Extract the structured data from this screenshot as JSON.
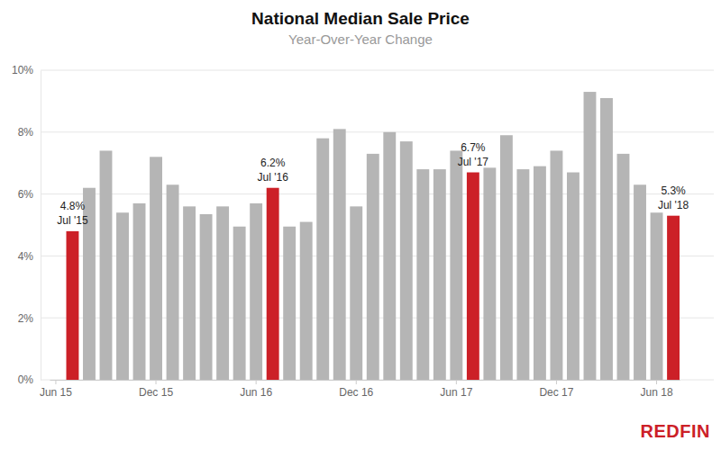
{
  "chart_data": {
    "type": "bar",
    "title": "National Median Sale Price",
    "subtitle": "Year-Over-Year Change",
    "logo": "REDFIN",
    "categories": [
      "Jun 15",
      null,
      null,
      null,
      null,
      null,
      "Dec 15",
      null,
      null,
      null,
      null,
      null,
      "Jun 16",
      null,
      null,
      null,
      null,
      null,
      "Dec 16",
      null,
      null,
      null,
      null,
      null,
      "Jun 17",
      null,
      null,
      null,
      null,
      null,
      "Dec 17",
      null,
      null,
      null,
      null,
      null,
      "Jun 18",
      null
    ],
    "values": [
      null,
      4.8,
      6.2,
      7.4,
      5.4,
      5.7,
      7.2,
      6.3,
      5.6,
      5.35,
      5.6,
      4.95,
      5.7,
      6.2,
      4.95,
      5.1,
      7.8,
      8.1,
      5.6,
      7.3,
      8.0,
      7.7,
      6.8,
      6.8,
      7.4,
      6.7,
      6.85,
      7.9,
      6.8,
      6.9,
      7.4,
      6.7,
      9.3,
      9.1,
      7.3,
      6.3,
      5.4,
      5.3
    ],
    "value_labels": [
      null,
      "4.8%",
      null,
      null,
      null,
      null,
      null,
      null,
      null,
      null,
      null,
      null,
      null,
      "6.2%",
      null,
      null,
      null,
      null,
      null,
      null,
      null,
      null,
      null,
      null,
      null,
      "6.7%",
      null,
      null,
      null,
      null,
      null,
      null,
      null,
      null,
      null,
      null,
      null,
      "5.3%"
    ],
    "annotations": [
      {
        "index": 1,
        "text": "Jul '15"
      },
      {
        "index": 13,
        "text": "Jul '16"
      },
      {
        "index": 25,
        "text": "Jul '17"
      },
      {
        "index": 37,
        "text": "Jul '18"
      }
    ],
    "colors": [
      null,
      "#cc2027",
      "#b5b5b5",
      "#b5b5b5",
      "#b5b5b5",
      "#b5b5b5",
      "#b5b5b5",
      "#b5b5b5",
      "#b5b5b5",
      "#b5b5b5",
      "#b5b5b5",
      "#b5b5b5",
      "#b5b5b5",
      "#cc2027",
      "#b5b5b5",
      "#b5b5b5",
      "#b5b5b5",
      "#b5b5b5",
      "#b5b5b5",
      "#b5b5b5",
      "#b5b5b5",
      "#b5b5b5",
      "#b5b5b5",
      "#b5b5b5",
      "#b5b5b5",
      "#cc2027",
      "#b5b5b5",
      "#b5b5b5",
      "#b5b5b5",
      "#b5b5b5",
      "#b5b5b5",
      "#b5b5b5",
      "#b5b5b5",
      "#b5b5b5",
      "#b5b5b5",
      "#b5b5b5",
      "#b5b5b5",
      "#cc2027"
    ],
    "ylim": [
      0,
      10
    ],
    "yticks": [
      {
        "value": 0,
        "label": "0%"
      },
      {
        "value": 2,
        "label": "2%"
      },
      {
        "value": 4,
        "label": "4%"
      },
      {
        "value": 6,
        "label": "6%"
      },
      {
        "value": 8,
        "label": "8%"
      },
      {
        "value": 10,
        "label": "10%"
      }
    ],
    "grid": true
  }
}
